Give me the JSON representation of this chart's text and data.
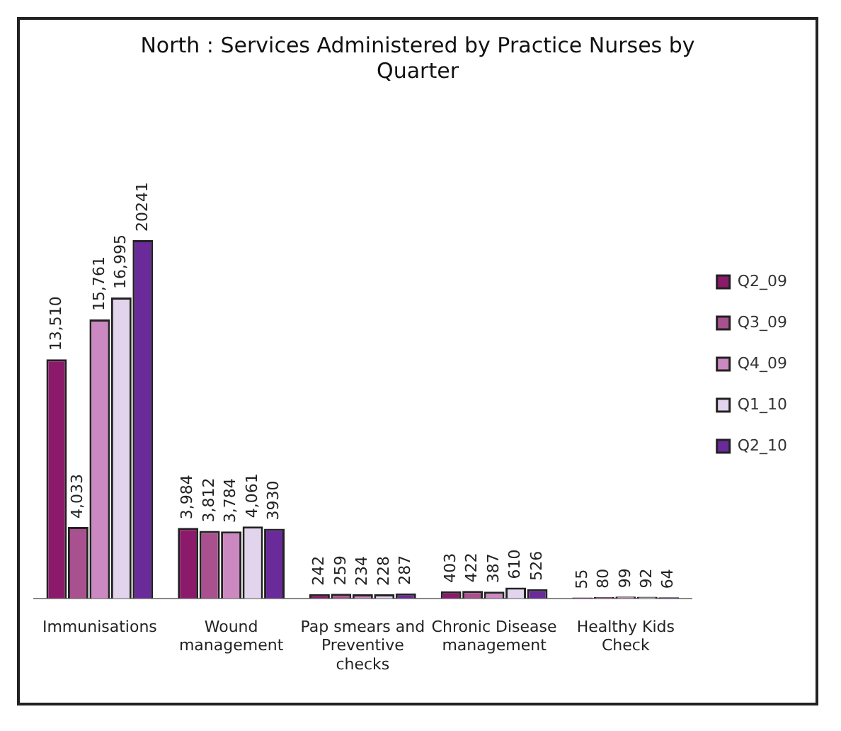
{
  "chart_data": {
    "type": "bar",
    "title": "North : Services Administered by Practice Nurses by Quarter",
    "categories": [
      "Immunisations",
      "Wound management",
      "Pap smears and Preventive checks",
      "Chronic Disease management",
      "Healthy Kids Check"
    ],
    "series": [
      {
        "name": "Q2_09",
        "color": "#8b1a6b",
        "values": [
          13510,
          3984,
          242,
          403,
          55
        ],
        "value_labels": [
          "13,510",
          "3,984",
          "242",
          "403",
          "55"
        ]
      },
      {
        "name": "Q3_09",
        "color": "#a9508f",
        "values": [
          4033,
          3812,
          259,
          422,
          80
        ],
        "value_labels": [
          "4,033",
          "3,812",
          "259",
          "422",
          "80"
        ]
      },
      {
        "name": "Q4_09",
        "color": "#cc88c0",
        "values": [
          15761,
          3784,
          234,
          387,
          99
        ],
        "value_labels": [
          "15,761",
          "3,784",
          "234",
          "387",
          "99"
        ]
      },
      {
        "name": "Q1_10",
        "color": "#e2d4ec",
        "values": [
          16995,
          4061,
          228,
          610,
          92
        ],
        "value_labels": [
          "16,995",
          "4,061",
          "228",
          "610",
          "92"
        ]
      },
      {
        "name": "Q2_10",
        "color": "#6a2a9a",
        "values": [
          20241,
          3930,
          287,
          526,
          64
        ],
        "value_labels": [
          "20241",
          "3930",
          "287",
          "526",
          "64"
        ]
      }
    ],
    "legend": "right",
    "grid": false
  }
}
